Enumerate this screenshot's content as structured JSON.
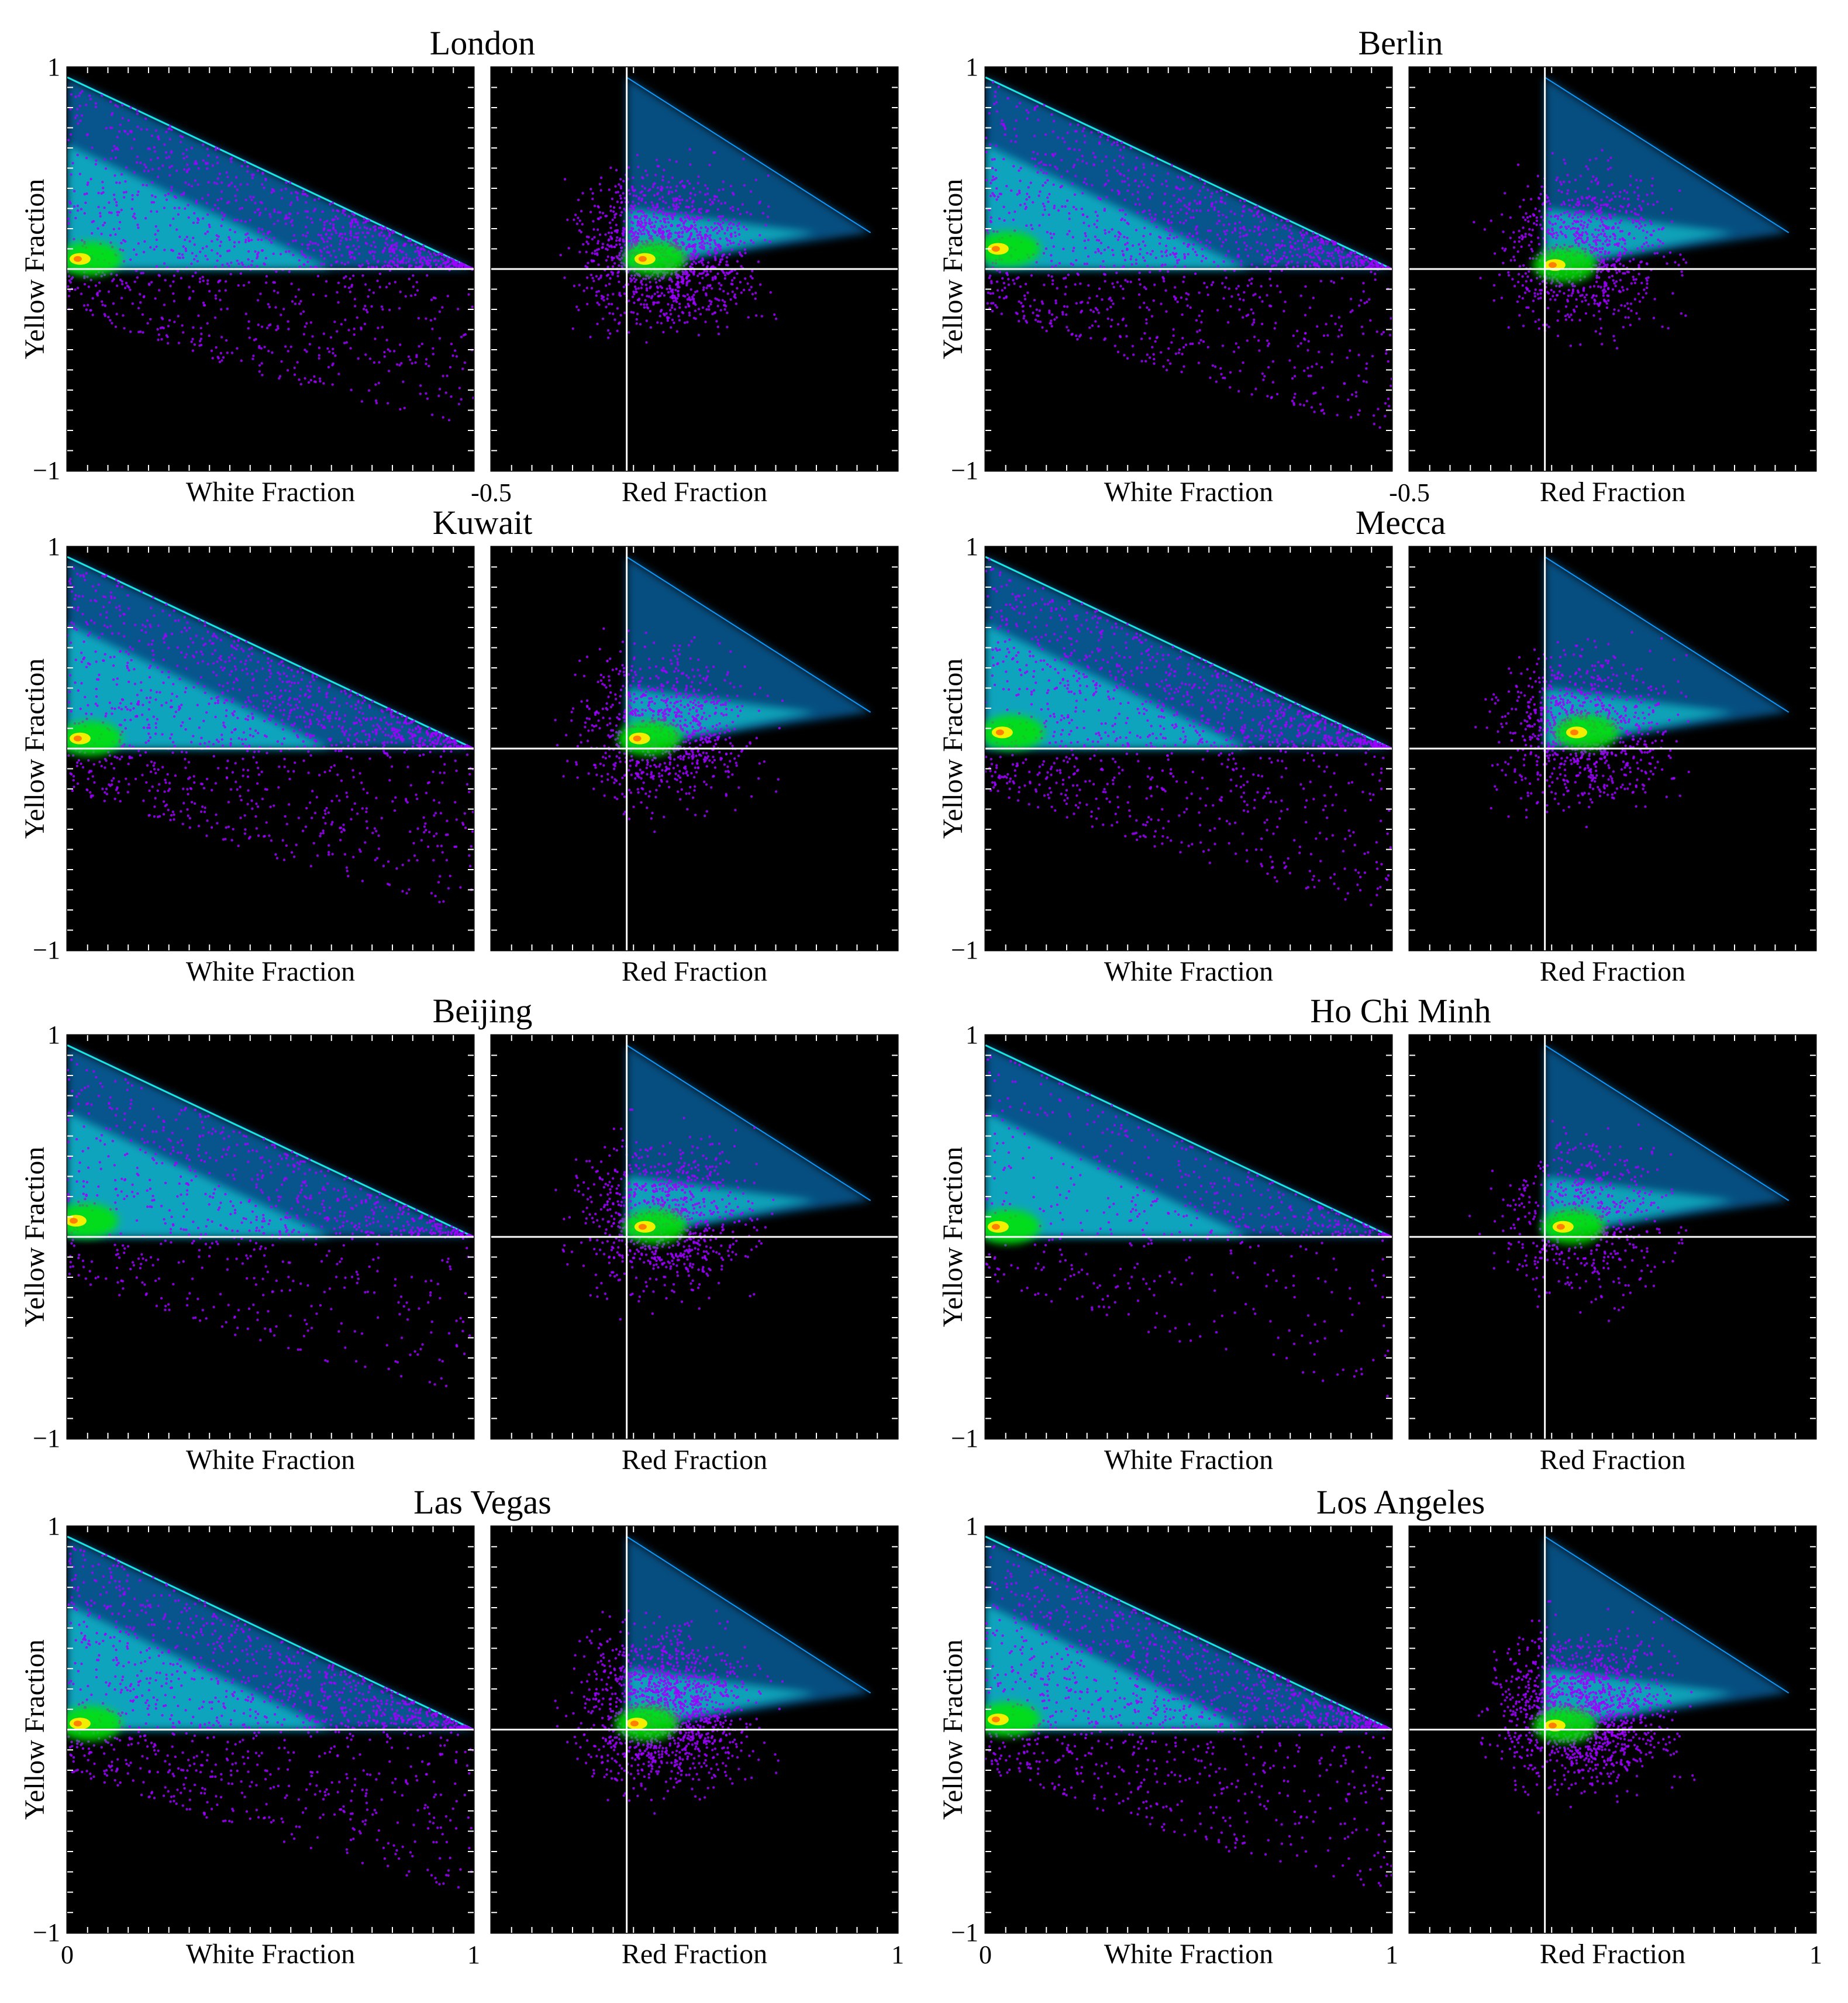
{
  "figure": {
    "background": "#ffffff",
    "plot_background": "#000000",
    "axis_line_color": "#ffffff",
    "colormap": [
      "#9d00ff",
      "#2b3dff",
      "#0b9bff",
      "#19e6e6",
      "#00e600",
      "#ffef00",
      "#ff7f00"
    ]
  },
  "chart_data": [
    {
      "type": "heatmap",
      "title": "London",
      "ylabel": "Yellow Fraction",
      "yticks": [
        "1",
        "−1"
      ],
      "ylim": [
        -1,
        1
      ],
      "panels": [
        {
          "xlabel": "White Fraction",
          "xlim": [
            0,
            1
          ],
          "xticks": [],
          "peak": {
            "x": 0.02,
            "y": 0.05
          },
          "density": "high"
        },
        {
          "xlabel": "Red Fraction",
          "xlim": [
            -0.5,
            1
          ],
          "xticks": [
            "-0.5"
          ],
          "peak": {
            "x": 0.05,
            "y": 0.05
          },
          "density": "high"
        }
      ]
    },
    {
      "type": "heatmap",
      "title": "Berlin",
      "ylabel": "Yellow Fraction",
      "yticks": [
        "1",
        "−1"
      ],
      "ylim": [
        -1,
        1
      ],
      "panels": [
        {
          "xlabel": "White Fraction",
          "xlim": [
            0,
            1
          ],
          "xticks": [],
          "peak": {
            "x": 0.02,
            "y": 0.1
          },
          "density": "high"
        },
        {
          "xlabel": "Red Fraction",
          "xlim": [
            -0.5,
            1
          ],
          "xticks": [
            "-0.5"
          ],
          "peak": {
            "x": 0.02,
            "y": 0.02
          },
          "density": "medium"
        }
      ]
    },
    {
      "type": "heatmap",
      "title": "Kuwait",
      "ylabel": "Yellow Fraction",
      "yticks": [
        "1",
        "−1"
      ],
      "ylim": [
        -1,
        1
      ],
      "panels": [
        {
          "xlabel": "White Fraction",
          "xlim": [
            0,
            1
          ],
          "xticks": [],
          "peak": {
            "x": 0.02,
            "y": 0.05
          },
          "density": "high"
        },
        {
          "xlabel": "Red Fraction",
          "xlim": [
            -0.5,
            1
          ],
          "xticks": [],
          "peak": {
            "x": 0.03,
            "y": 0.05
          },
          "density": "medium"
        }
      ]
    },
    {
      "type": "heatmap",
      "title": "Mecca",
      "ylabel": "Yellow Fraction",
      "yticks": [
        "1",
        "−1"
      ],
      "ylim": [
        -1,
        1
      ],
      "panels": [
        {
          "xlabel": "White Fraction",
          "xlim": [
            0,
            1
          ],
          "xticks": [],
          "peak": {
            "x": 0.03,
            "y": 0.08
          },
          "density": "high"
        },
        {
          "xlabel": "Red Fraction",
          "xlim": [
            -0.5,
            1
          ],
          "xticks": [],
          "peak": {
            "x": 0.1,
            "y": 0.08
          },
          "density": "medium"
        }
      ]
    },
    {
      "type": "heatmap",
      "title": "Beijing",
      "ylabel": "Yellow Fraction",
      "yticks": [
        "1",
        "−1"
      ],
      "ylim": [
        -1,
        1
      ],
      "panels": [
        {
          "xlabel": "White Fraction",
          "xlim": [
            0,
            1
          ],
          "xticks": [],
          "peak": {
            "x": 0.01,
            "y": 0.08
          },
          "density": "medium"
        },
        {
          "xlabel": "Red Fraction",
          "xlim": [
            -0.5,
            1
          ],
          "xticks": [],
          "peak": {
            "x": 0.05,
            "y": 0.05
          },
          "density": "medium"
        }
      ]
    },
    {
      "type": "heatmap",
      "title": "Ho Chi Minh",
      "ylabel": "Yellow Fraction",
      "yticks": [
        "1",
        "−1"
      ],
      "ylim": [
        -1,
        1
      ],
      "panels": [
        {
          "xlabel": "White Fraction",
          "xlim": [
            0,
            1
          ],
          "xticks": [],
          "peak": {
            "x": 0.02,
            "y": 0.05
          },
          "density": "low"
        },
        {
          "xlabel": "Red Fraction",
          "xlim": [
            -0.5,
            1
          ],
          "xticks": [],
          "peak": {
            "x": 0.05,
            "y": 0.05
          },
          "density": "low"
        }
      ]
    },
    {
      "type": "heatmap",
      "title": "Las Vegas",
      "ylabel": "Yellow Fraction",
      "yticks": [
        "1",
        "−1"
      ],
      "ylim": [
        -1,
        1
      ],
      "panels": [
        {
          "xlabel": "White Fraction",
          "xlim": [
            0,
            1
          ],
          "xticks": [
            "0",
            "1"
          ],
          "peak": {
            "x": 0.02,
            "y": 0.03
          },
          "density": "high"
        },
        {
          "xlabel": "Red Fraction",
          "xlim": [
            -0.5,
            1
          ],
          "xticks": [
            "1"
          ],
          "peak": {
            "x": 0.02,
            "y": 0.03
          },
          "density": "high"
        }
      ]
    },
    {
      "type": "heatmap",
      "title": "Los Angeles",
      "ylabel": "Yellow Fraction",
      "yticks": [
        "1",
        "−1"
      ],
      "ylim": [
        -1,
        1
      ],
      "panels": [
        {
          "xlabel": "White Fraction",
          "xlim": [
            0,
            1
          ],
          "xticks": [
            "0",
            "1"
          ],
          "peak": {
            "x": 0.02,
            "y": 0.05
          },
          "density": "high"
        },
        {
          "xlabel": "Red Fraction",
          "xlim": [
            -0.5,
            1
          ],
          "xticks": [
            "1"
          ],
          "peak": {
            "x": 0.02,
            "y": 0.02
          },
          "density": "high"
        }
      ]
    }
  ]
}
